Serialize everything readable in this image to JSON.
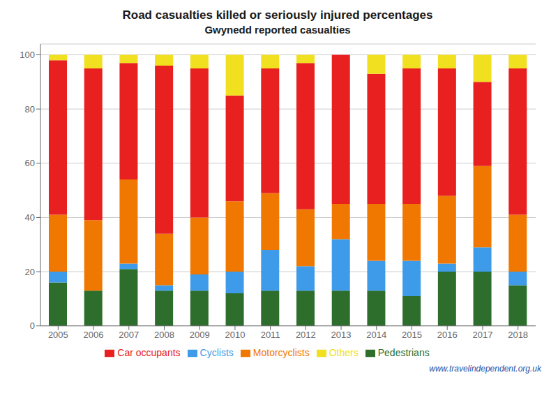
{
  "chart_data": {
    "type": "bar",
    "title": "Road casualties killed or seriously injured percentages",
    "subtitle": "Gwynedd reported casualties",
    "categories": [
      "2005",
      "2006",
      "2007",
      "2008",
      "2009",
      "2010",
      "2011",
      "2012",
      "2013",
      "2014",
      "2015",
      "2016",
      "2017",
      "2018"
    ],
    "series": [
      {
        "name": "Pedestrians",
        "color": "#2d6e2d",
        "values": [
          16,
          13,
          21,
          13,
          13,
          12,
          13,
          13,
          13,
          13,
          11,
          20,
          20,
          15
        ]
      },
      {
        "name": "Cyclists",
        "color": "#3d9be9",
        "values": [
          4,
          0,
          2,
          2,
          6,
          8,
          15,
          9,
          19,
          11,
          13,
          3,
          9,
          5
        ]
      },
      {
        "name": "Motorcyclists",
        "color": "#f07800",
        "values": [
          21,
          26,
          31,
          19,
          21,
          26,
          21,
          21,
          13,
          21,
          21,
          25,
          30,
          21
        ]
      },
      {
        "name": "Car occupants",
        "color": "#e82020",
        "values": [
          57,
          56,
          43,
          62,
          55,
          39,
          46,
          54,
          55,
          48,
          50,
          47,
          31,
          54
        ]
      },
      {
        "name": "Others",
        "color": "#f0e020",
        "values": [
          2,
          5,
          3,
          4,
          5,
          15,
          5,
          3,
          0,
          7,
          5,
          5,
          10,
          5
        ]
      }
    ],
    "stacked": true,
    "ylim": [
      0,
      104
    ],
    "yticks": [
      0,
      20,
      40,
      60,
      80,
      100
    ],
    "grid": true,
    "legend": "bottom",
    "annotations": [
      "www.travelindependent.org.uk"
    ]
  }
}
